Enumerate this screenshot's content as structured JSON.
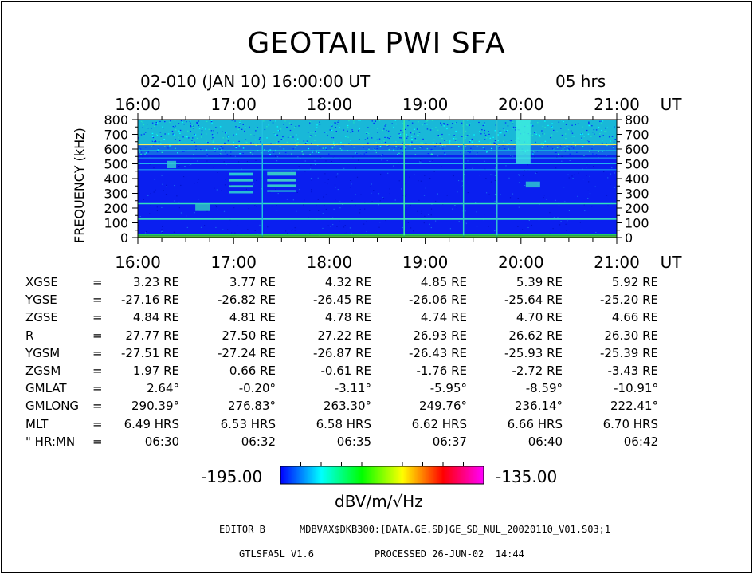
{
  "chart_data": {
    "type": "heatmap",
    "title": "GEOTAIL PWI SFA",
    "subtitle_left": "02-010 (JAN 10) 16:00:00 UT",
    "subtitle_right": "05 hrs",
    "x_ticks": [
      "16:00",
      "17:00",
      "18:00",
      "19:00",
      "20:00",
      "21:00"
    ],
    "x_unit": "UT",
    "ylabel": "FREQUENCY (kHz)",
    "y_ticks": [
      "800",
      "700",
      "600",
      "500",
      "400",
      "300",
      "200",
      "100",
      "0"
    ],
    "colorbar": {
      "min_label": "-195.00",
      "max_label": "-135.00",
      "unit": "dBV/m/√Hz",
      "colors": [
        "#0000ff",
        "#00ffff",
        "#00ff00",
        "#ffff00",
        "#ff0000",
        "#ff00ff"
      ]
    }
  },
  "orbit": {
    "rows": [
      {
        "label": "XGSE",
        "eq": "=",
        "values": [
          "3.23 RE",
          "3.77 RE",
          "4.32 RE",
          "4.85 RE",
          "5.39 RE",
          "5.92 RE"
        ]
      },
      {
        "label": "YGSE",
        "eq": "=",
        "values": [
          "-27.16 RE",
          "-26.82 RE",
          "-26.45 RE",
          "-26.06 RE",
          "-25.64 RE",
          "-25.20 RE"
        ]
      },
      {
        "label": "ZGSE",
        "eq": "=",
        "values": [
          "4.84 RE",
          "4.81 RE",
          "4.78 RE",
          "4.74 RE",
          "4.70 RE",
          "4.66 RE"
        ]
      },
      {
        "label": "R",
        "eq": "=",
        "values": [
          "27.77 RE",
          "27.50 RE",
          "27.22 RE",
          "26.93 RE",
          "26.62 RE",
          "26.30 RE"
        ]
      },
      {
        "label": "YGSM",
        "eq": "=",
        "values": [
          "-27.51 RE",
          "-27.24 RE",
          "-26.87 RE",
          "-26.43 RE",
          "-25.93 RE",
          "-25.39 RE"
        ]
      },
      {
        "label": "ZGSM",
        "eq": "=",
        "values": [
          "1.97 RE",
          "0.66 RE",
          "-0.61 RE",
          "-1.76 RE",
          "-2.72 RE",
          "-3.43 RE"
        ]
      },
      {
        "label": "GMLAT",
        "eq": "=",
        "values": [
          "2.64°",
          "-0.20°",
          "-3.11°",
          "-5.95°",
          "-8.59°",
          "-10.91°"
        ]
      },
      {
        "label": "GMLONG",
        "eq": "=",
        "values": [
          "290.39°",
          "276.83°",
          "263.30°",
          "249.76°",
          "236.14°",
          "222.41°"
        ]
      },
      {
        "label": "MLT",
        "eq": "=",
        "values": [
          "6.49 HRS",
          "6.53 HRS",
          "6.58 HRS",
          "6.62 HRS",
          "6.66 HRS",
          "6.70 HRS"
        ]
      },
      {
        "label": "\" HR:MN",
        "eq": "=",
        "values": [
          "06:30",
          "06:32",
          "06:35",
          "06:37",
          "06:40",
          "06:42"
        ]
      }
    ]
  },
  "footer": {
    "editor": "EDITOR B",
    "path": "MDBVAX$DKB300:[DATA.GE.SD]GE_SD_NUL_20020110_V01.S03;1",
    "program": "GTLSFA5L V1.6",
    "processed": "PROCESSED 26-JUN-02  14:44"
  }
}
